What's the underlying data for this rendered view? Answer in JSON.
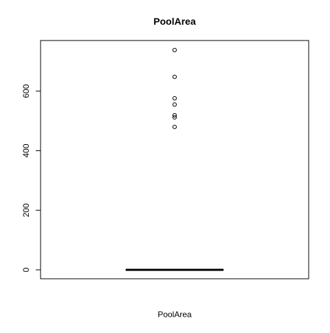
{
  "chart_data": {
    "type": "boxplot",
    "title": "PoolArea",
    "xlabel": "PoolArea",
    "ylabel": "",
    "ylim": [
      -30,
      770
    ],
    "yticks": [
      0,
      200,
      400,
      600
    ],
    "ytick_labels": [
      "0",
      "200",
      "400",
      "600"
    ],
    "grid": false,
    "box": {
      "min": 0,
      "q1": 0,
      "median": 0,
      "q3": 0,
      "max": 0
    },
    "outliers": [
      480,
      512,
      519,
      555,
      576,
      648,
      738
    ],
    "colors": {
      "stroke": "#000000",
      "background": "#ffffff"
    }
  }
}
